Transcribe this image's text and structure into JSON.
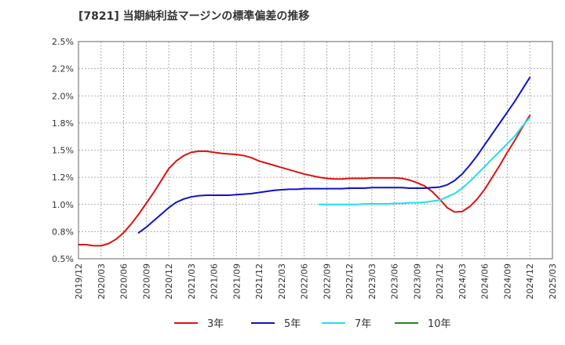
{
  "chart_data": {
    "type": "line",
    "title": "[7821]  当期純利益マージンの標準偏差の推移",
    "xlabel": "",
    "ylabel": "",
    "ylim": [
      0.5,
      2.5
    ],
    "y_ticks": [
      "0.5%",
      "0.8%",
      "1.0%",
      "1.2%",
      "1.5%",
      "1.8%",
      "2.0%",
      "2.2%",
      "2.5%"
    ],
    "y_tick_values": [
      0.5,
      0.75,
      1.0,
      1.25,
      1.5,
      1.75,
      2.0,
      2.25,
      2.5
    ],
    "x_tick_labels": [
      "2019/12",
      "2020/03",
      "2020/06",
      "2020/09",
      "2020/12",
      "2021/03",
      "2021/06",
      "2021/09",
      "2021/12",
      "2022/03",
      "2022/06",
      "2022/09",
      "2022/12",
      "2023/03",
      "2023/06",
      "2023/09",
      "2023/12",
      "2024/03",
      "2024/06",
      "2024/09",
      "2024/12",
      "2025/03"
    ],
    "grid": true,
    "legend_position": "bottom",
    "series": [
      {
        "name": "3年",
        "color": "#dd1111",
        "points": [
          [
            "2019/12",
            0.63
          ],
          [
            "2020/01",
            0.63
          ],
          [
            "2020/02",
            0.62
          ],
          [
            "2020/03",
            0.62
          ],
          [
            "2020/04",
            0.64
          ],
          [
            "2020/05",
            0.68
          ],
          [
            "2020/06",
            0.74
          ],
          [
            "2020/07",
            0.82
          ],
          [
            "2020/08",
            0.91
          ],
          [
            "2020/09",
            1.01
          ],
          [
            "2020/10",
            1.11
          ],
          [
            "2020/11",
            1.22
          ],
          [
            "2020/12",
            1.33
          ],
          [
            "2021/01",
            1.4
          ],
          [
            "2021/02",
            1.45
          ],
          [
            "2021/03",
            1.48
          ],
          [
            "2021/04",
            1.49
          ],
          [
            "2021/05",
            1.49
          ],
          [
            "2021/06",
            1.48
          ],
          [
            "2021/07",
            1.47
          ],
          [
            "2021/08",
            1.465
          ],
          [
            "2021/09",
            1.46
          ],
          [
            "2021/10",
            1.45
          ],
          [
            "2021/11",
            1.43
          ],
          [
            "2021/12",
            1.4
          ],
          [
            "2022/01",
            1.38
          ],
          [
            "2022/02",
            1.36
          ],
          [
            "2022/03",
            1.34
          ],
          [
            "2022/04",
            1.32
          ],
          [
            "2022/05",
            1.3
          ],
          [
            "2022/06",
            1.28
          ],
          [
            "2022/07",
            1.265
          ],
          [
            "2022/08",
            1.25
          ],
          [
            "2022/09",
            1.24
          ],
          [
            "2022/10",
            1.235
          ],
          [
            "2022/11",
            1.235
          ],
          [
            "2022/12",
            1.24
          ],
          [
            "2023/01",
            1.24
          ],
          [
            "2023/02",
            1.24
          ],
          [
            "2023/03",
            1.245
          ],
          [
            "2023/04",
            1.245
          ],
          [
            "2023/05",
            1.245
          ],
          [
            "2023/06",
            1.245
          ],
          [
            "2023/07",
            1.24
          ],
          [
            "2023/08",
            1.225
          ],
          [
            "2023/09",
            1.2
          ],
          [
            "2023/10",
            1.17
          ],
          [
            "2023/11",
            1.12
          ],
          [
            "2023/12",
            1.05
          ],
          [
            "2024/01",
            0.97
          ],
          [
            "2024/02",
            0.93
          ],
          [
            "2024/03",
            0.935
          ],
          [
            "2024/04",
            0.98
          ],
          [
            "2024/05",
            1.05
          ],
          [
            "2024/06",
            1.14
          ],
          [
            "2024/07",
            1.25
          ],
          [
            "2024/08",
            1.36
          ],
          [
            "2024/09",
            1.48
          ],
          [
            "2024/10",
            1.59
          ],
          [
            "2024/11",
            1.71
          ],
          [
            "2024/12",
            1.82
          ]
        ]
      },
      {
        "name": "5年",
        "color": "#1111cc",
        "points": [
          [
            "2020/08",
            0.74
          ],
          [
            "2020/09",
            0.79
          ],
          [
            "2020/10",
            0.85
          ],
          [
            "2020/11",
            0.91
          ],
          [
            "2020/12",
            0.97
          ],
          [
            "2021/01",
            1.02
          ],
          [
            "2021/02",
            1.05
          ],
          [
            "2021/03",
            1.07
          ],
          [
            "2021/04",
            1.08
          ],
          [
            "2021/05",
            1.085
          ],
          [
            "2021/06",
            1.085
          ],
          [
            "2021/07",
            1.085
          ],
          [
            "2021/08",
            1.085
          ],
          [
            "2021/09",
            1.09
          ],
          [
            "2021/10",
            1.095
          ],
          [
            "2021/11",
            1.1
          ],
          [
            "2021/12",
            1.11
          ],
          [
            "2022/01",
            1.12
          ],
          [
            "2022/02",
            1.13
          ],
          [
            "2022/03",
            1.135
          ],
          [
            "2022/04",
            1.14
          ],
          [
            "2022/05",
            1.14
          ],
          [
            "2022/06",
            1.145
          ],
          [
            "2022/07",
            1.145
          ],
          [
            "2022/08",
            1.145
          ],
          [
            "2022/09",
            1.145
          ],
          [
            "2022/10",
            1.145
          ],
          [
            "2022/11",
            1.145
          ],
          [
            "2022/12",
            1.15
          ],
          [
            "2023/01",
            1.15
          ],
          [
            "2023/02",
            1.15
          ],
          [
            "2023/03",
            1.155
          ],
          [
            "2023/04",
            1.155
          ],
          [
            "2023/05",
            1.155
          ],
          [
            "2023/06",
            1.155
          ],
          [
            "2023/07",
            1.155
          ],
          [
            "2023/08",
            1.15
          ],
          [
            "2023/09",
            1.15
          ],
          [
            "2023/10",
            1.15
          ],
          [
            "2023/11",
            1.155
          ],
          [
            "2023/12",
            1.16
          ],
          [
            "2024/01",
            1.18
          ],
          [
            "2024/02",
            1.22
          ],
          [
            "2024/03",
            1.28
          ],
          [
            "2024/04",
            1.36
          ],
          [
            "2024/05",
            1.45
          ],
          [
            "2024/06",
            1.55
          ],
          [
            "2024/07",
            1.65
          ],
          [
            "2024/08",
            1.75
          ],
          [
            "2024/09",
            1.85
          ],
          [
            "2024/10",
            1.95
          ],
          [
            "2024/11",
            2.06
          ],
          [
            "2024/12",
            2.17
          ]
        ]
      },
      {
        "name": "7年",
        "color": "#22ddee",
        "points": [
          [
            "2022/08",
            1.0
          ],
          [
            "2022/09",
            1.0
          ],
          [
            "2022/10",
            1.0
          ],
          [
            "2022/11",
            1.0
          ],
          [
            "2022/12",
            1.0
          ],
          [
            "2023/01",
            1.0
          ],
          [
            "2023/02",
            1.005
          ],
          [
            "2023/03",
            1.005
          ],
          [
            "2023/04",
            1.005
          ],
          [
            "2023/05",
            1.005
          ],
          [
            "2023/06",
            1.01
          ],
          [
            "2023/07",
            1.01
          ],
          [
            "2023/08",
            1.015
          ],
          [
            "2023/09",
            1.015
          ],
          [
            "2023/10",
            1.02
          ],
          [
            "2023/11",
            1.03
          ],
          [
            "2023/12",
            1.04
          ],
          [
            "2024/01",
            1.07
          ],
          [
            "2024/02",
            1.1
          ],
          [
            "2024/03",
            1.15
          ],
          [
            "2024/04",
            1.21
          ],
          [
            "2024/05",
            1.28
          ],
          [
            "2024/06",
            1.35
          ],
          [
            "2024/07",
            1.42
          ],
          [
            "2024/08",
            1.49
          ],
          [
            "2024/09",
            1.56
          ],
          [
            "2024/10",
            1.63
          ],
          [
            "2024/11",
            1.72
          ],
          [
            "2024/12",
            1.8
          ]
        ]
      },
      {
        "name": "10年",
        "color": "#228822",
        "points": []
      }
    ]
  }
}
